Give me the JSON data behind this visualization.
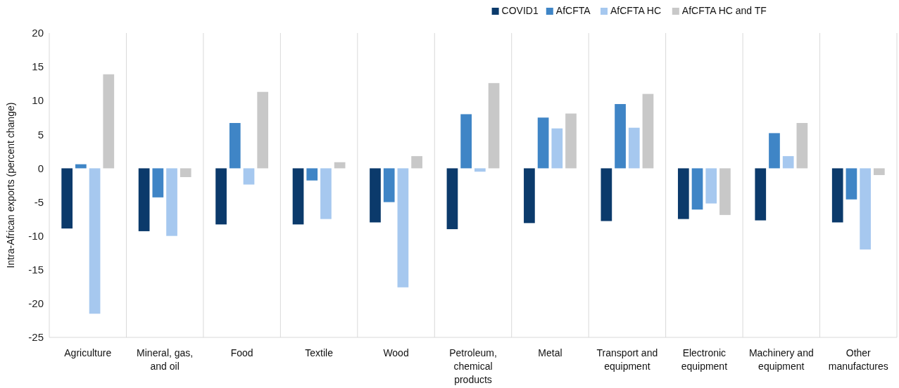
{
  "chart_data": {
    "type": "bar",
    "ylabel": "Intra-African exports (percent change)",
    "categories": [
      "Agriculture",
      "Mineral, gas, and oil",
      "Food",
      "Textile",
      "Wood",
      "Petroleum, chemical products",
      "Metal",
      "Transport and equipment",
      "Electronic equipment",
      "Machinery and equipment",
      "Other manufactures"
    ],
    "series": [
      {
        "name": "COVID1",
        "color": "#0b3a6b",
        "values": [
          -8.9,
          -9.3,
          -8.3,
          -8.3,
          -8.0,
          -9.0,
          -8.1,
          -7.8,
          -7.5,
          -7.7,
          -8.0
        ]
      },
      {
        "name": "AfCFTA",
        "color": "#3f85c6",
        "values": [
          0.6,
          -4.3,
          6.7,
          -1.8,
          -5.0,
          8.0,
          7.5,
          9.5,
          -6.1,
          5.2,
          -4.6
        ]
      },
      {
        "name": "AfCFTA HC",
        "color": "#a6c8ef",
        "values": [
          -21.5,
          -10.0,
          -2.4,
          -7.5,
          -17.6,
          -0.5,
          5.9,
          6.0,
          -5.2,
          1.8,
          -12.0
        ]
      },
      {
        "name": "AfCFTA HC and TF",
        "color": "#c8c8c8",
        "values": [
          13.9,
          -1.3,
          11.3,
          0.9,
          1.8,
          12.6,
          8.1,
          11.0,
          -6.9,
          6.7,
          -1.0
        ]
      }
    ],
    "ylim": [
      -25,
      20
    ],
    "yticks": [
      -25,
      -20,
      -15,
      -10,
      -5,
      0,
      5,
      10,
      15,
      20
    ],
    "grid": "x",
    "legend": "top right"
  }
}
